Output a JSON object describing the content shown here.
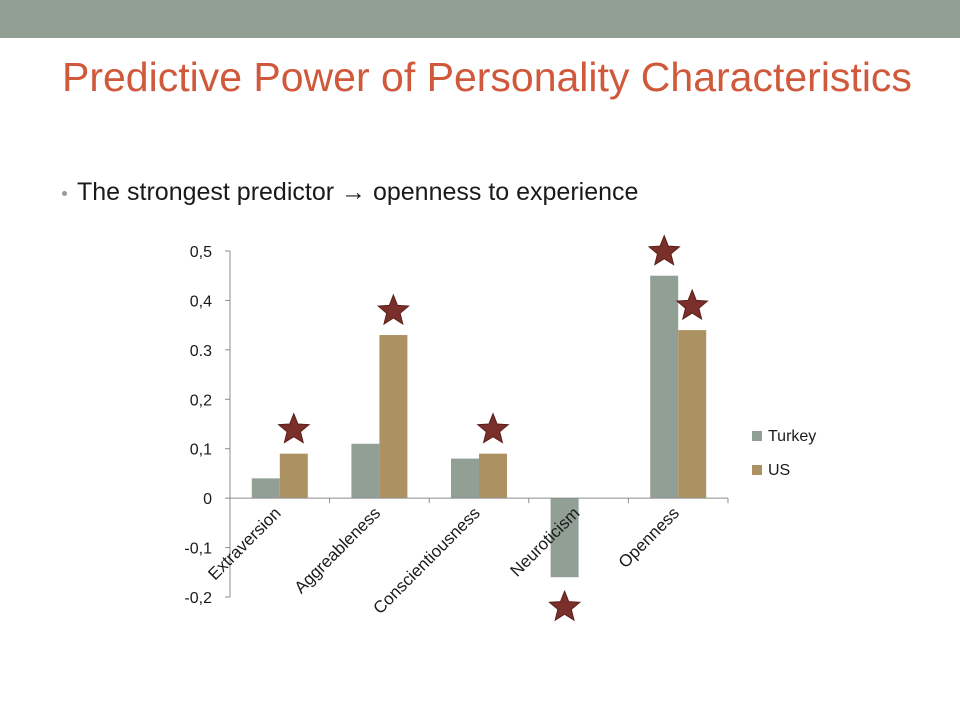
{
  "slide": {
    "title": "Predictive Power of Personality Characteristics",
    "bullet": "The strongest predictor  → openness to experience",
    "accent_color": "#d0593b",
    "top_bar_color": "#919f95"
  },
  "chart_data": {
    "type": "bar",
    "title": "",
    "xlabel": "",
    "ylabel": "",
    "categories": [
      "Extraversion",
      "Aggreableness",
      "Conscientiousness",
      "Neuroticism",
      "Openness"
    ],
    "series": [
      {
        "name": "Turkey",
        "color": "#919f95",
        "values": [
          0.04,
          0.11,
          0.08,
          -0.16,
          0.45
        ]
      },
      {
        "name": "US",
        "color": "#ac9163",
        "values": [
          0.09,
          0.33,
          0.09,
          0.0,
          0.34
        ]
      }
    ],
    "ylim": [
      -0.2,
      0.5
    ],
    "yticks": [
      0.5,
      0.4,
      0.3,
      0.2,
      0.1,
      0,
      -0.1,
      -0.2
    ],
    "ytick_labels": [
      "0,5",
      "0,4",
      "0.3",
      "0,2",
      "0,1",
      "0",
      "-0,1",
      "-0,2"
    ],
    "grid": false,
    "legend": "right",
    "star_markers": [
      {
        "category": "Extraversion",
        "series": "US"
      },
      {
        "category": "Aggreableness",
        "series": "US"
      },
      {
        "category": "Conscientiousness",
        "series": "US"
      },
      {
        "category": "Neuroticism",
        "series": "Turkey"
      },
      {
        "category": "Openness",
        "series": "Turkey"
      },
      {
        "category": "Openness",
        "series": "US"
      }
    ],
    "star_color": "#7b2f2a"
  }
}
